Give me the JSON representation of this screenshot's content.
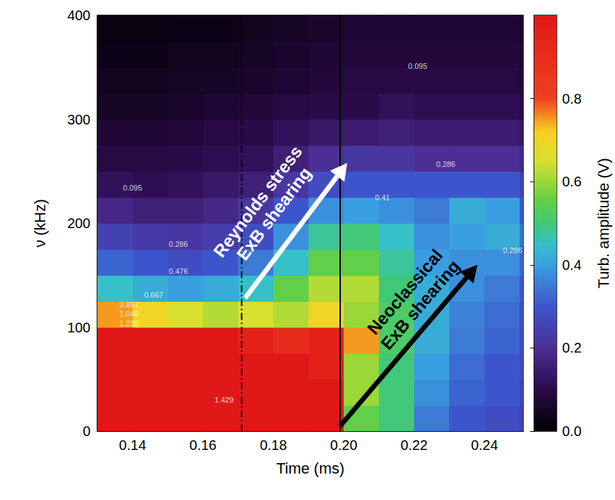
{
  "chart_data": {
    "type": "heatmap",
    "x_label": "Time (ms)",
    "y_label": "ν (kHz)",
    "xlim": [
      0.13,
      0.251
    ],
    "xticks": [
      0.14,
      0.16,
      0.18,
      {
        "value": 0.2,
        "label": "0.20"
      },
      0.22,
      0.24
    ],
    "ylim": [
      0,
      400
    ],
    "yticks": [
      0,
      100,
      200,
      300,
      400
    ],
    "grid": false,
    "heatmap": {
      "x": [
        0.135,
        0.145,
        0.155,
        0.165,
        0.175,
        0.185,
        0.195,
        0.205,
        0.215,
        0.225,
        0.235,
        0.245,
        0.255
      ],
      "y": [
        12.5,
        37.5,
        62.5,
        87.5,
        112.5,
        137.5,
        162.5,
        187.5,
        212.5,
        237.5,
        262.5,
        287.5,
        312.5,
        337.5,
        362.5,
        387.5
      ],
      "z": [
        [
          1.3,
          1.4,
          1.4,
          1.3,
          1.2,
          1.1,
          1.0,
          0.55,
          0.5,
          0.35,
          0.3,
          0.28,
          0.25
        ],
        [
          1.35,
          1.45,
          1.45,
          1.35,
          1.25,
          1.15,
          1.0,
          0.6,
          0.5,
          0.38,
          0.32,
          0.3,
          0.26
        ],
        [
          1.3,
          1.4,
          1.4,
          1.3,
          1.2,
          1.1,
          0.95,
          0.6,
          0.5,
          0.4,
          0.33,
          0.3,
          0.27
        ],
        [
          1.1,
          1.1,
          1.05,
          1.0,
          0.95,
          0.9,
          0.95,
          0.75,
          0.52,
          0.42,
          0.35,
          0.32,
          0.28
        ],
        [
          0.75,
          0.7,
          0.65,
          0.62,
          0.65,
          0.62,
          0.7,
          0.6,
          0.52,
          0.42,
          0.36,
          0.33,
          0.28
        ],
        [
          0.45,
          0.42,
          0.4,
          0.42,
          0.45,
          0.55,
          0.62,
          0.62,
          0.5,
          0.42,
          0.38,
          0.35,
          0.3
        ],
        [
          0.32,
          0.3,
          0.28,
          0.3,
          0.35,
          0.45,
          0.55,
          0.55,
          0.48,
          0.4,
          0.38,
          0.38,
          0.32
        ],
        [
          0.25,
          0.23,
          0.22,
          0.24,
          0.28,
          0.38,
          0.48,
          0.5,
          0.45,
          0.38,
          0.4,
          0.42,
          0.34
        ],
        [
          0.18,
          0.16,
          0.16,
          0.18,
          0.22,
          0.3,
          0.38,
          0.4,
          0.38,
          0.35,
          0.42,
          0.4,
          0.3
        ],
        [
          0.12,
          0.11,
          0.12,
          0.14,
          0.16,
          0.22,
          0.28,
          0.3,
          0.3,
          0.3,
          0.3,
          0.3,
          0.25
        ],
        [
          0.09,
          0.09,
          0.1,
          0.11,
          0.12,
          0.16,
          0.2,
          0.22,
          0.22,
          0.2,
          0.2,
          0.2,
          0.18
        ],
        [
          0.07,
          0.07,
          0.08,
          0.09,
          0.1,
          0.12,
          0.14,
          0.15,
          0.16,
          0.15,
          0.15,
          0.15,
          0.14
        ],
        [
          0.05,
          0.05,
          0.06,
          0.07,
          0.08,
          0.09,
          0.1,
          0.1,
          0.12,
          0.11,
          0.11,
          0.11,
          0.1
        ],
        [
          0.04,
          0.04,
          0.05,
          0.05,
          0.06,
          0.07,
          0.08,
          0.09,
          0.09,
          0.09,
          0.09,
          0.09,
          0.08
        ],
        [
          0.03,
          0.03,
          0.04,
          0.04,
          0.05,
          0.06,
          0.07,
          0.08,
          0.08,
          0.08,
          0.08,
          0.08,
          0.07
        ],
        [
          0.02,
          0.02,
          0.03,
          0.03,
          0.04,
          0.05,
          0.06,
          0.07,
          0.07,
          0.07,
          0.07,
          0.07,
          0.06
        ]
      ]
    },
    "colorbar": {
      "label": "Turb. amplitude (V)",
      "lim": [
        0,
        1
      ],
      "ticks": [
        {
          "value": 0,
          "label": "0.0"
        },
        0.2,
        0.4,
        0.6,
        0.8
      ]
    },
    "vlines": [
      {
        "x": 0.171,
        "line_style": "dashdot",
        "color": "#000000"
      },
      {
        "x": 0.199,
        "line_style": "solid",
        "color": "#000000"
      }
    ],
    "annotations": [
      {
        "lines": [
          "Reynolds stress",
          "ExB shearing"
        ],
        "start": [
          0.172,
          128
        ],
        "end": [
          0.201,
          258
        ],
        "color": "#ffffff"
      },
      {
        "lines": [
          "Neoclassical",
          "ExB shearing"
        ],
        "start": [
          0.199,
          5
        ],
        "end": [
          0.238,
          160
        ],
        "color": "#000000"
      }
    ],
    "contour_labels": [
      {
        "value": 0.095,
        "x": 0.14,
        "y": 234
      },
      {
        "value": 0.095,
        "x": 0.221,
        "y": 351
      },
      {
        "value": 0.286,
        "x": 0.153,
        "y": 180
      },
      {
        "value": 0.286,
        "x": 0.229,
        "y": 257
      },
      {
        "value": 0.286,
        "x": 0.248,
        "y": 174
      },
      {
        "value": 0.41,
        "x": 0.211,
        "y": 225
      },
      {
        "value": 0.476,
        "x": 0.153,
        "y": 154
      },
      {
        "value": 0.667,
        "x": 0.146,
        "y": 131
      },
      {
        "value": 0.857,
        "x": 0.139,
        "y": 122
      },
      {
        "value": 1.048,
        "x": 0.139,
        "y": 113
      },
      {
        "value": 1.238,
        "x": 0.139,
        "y": 104
      },
      {
        "value": 1.429,
        "x": 0.166,
        "y": 30
      }
    ]
  }
}
